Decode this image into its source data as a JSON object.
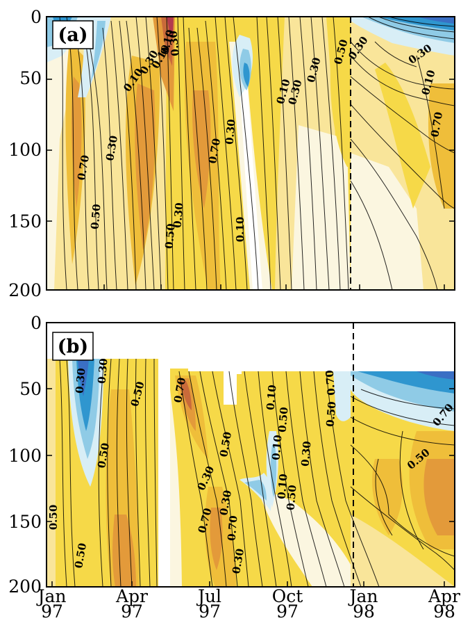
{
  "chart_data": [
    {
      "type": "heatmap",
      "panel_label": "(a)",
      "ylim": [
        200,
        0
      ],
      "yticks": [
        "0",
        "50",
        "100",
        "150",
        "200"
      ],
      "x_range_months": [
        "Jan 97",
        "Apr 98"
      ],
      "contour_labels": [
        "0.70",
        "0.50",
        "0.30",
        "0.10",
        "0.30",
        "0.50",
        "0.30",
        "0.10",
        "0.10",
        "0.30",
        "0.70",
        "0.30",
        "0.10",
        "0.10",
        "0.30",
        "0.30",
        "0.50",
        "0.30",
        "0.30",
        "0.10",
        "0.70"
      ],
      "vline_date": "Dec 97",
      "colormap": [
        "#2f96cf",
        "#8fcbe6",
        "#d8eef6",
        "#fbf7dc",
        "#f9e9a0",
        "#f6d948",
        "#efbe3a",
        "#e39a3a",
        "#c96a3a",
        "#b33a4e"
      ]
    },
    {
      "type": "heatmap",
      "panel_label": "(b)",
      "ylim": [
        200,
        0
      ],
      "yticks": [
        "0",
        "50",
        "100",
        "150",
        "200"
      ],
      "xticks": [
        {
          "month": "Jan",
          "year": "97"
        },
        {
          "month": "Apr",
          "year": "97"
        },
        {
          "month": "Jul",
          "year": "97"
        },
        {
          "month": "Oct",
          "year": "97"
        },
        {
          "month": "Jan",
          "year": "98"
        },
        {
          "month": "Apr",
          "year": "98"
        }
      ],
      "contour_labels": [
        "0.30",
        "0.30",
        "0.50",
        "0.50",
        "0.50",
        "0.50",
        "0.70",
        "0.30",
        "0.70",
        "0.50",
        "0.30",
        "0.10",
        "0.50",
        "0.30",
        "0.70",
        "0.10",
        "0.10",
        "0.50",
        "0.70",
        "0.30",
        "0.50",
        "0.50",
        "0.70"
      ],
      "data_gaps": [
        "May 97",
        "Jun 97 (shallow)"
      ],
      "vline_date": "Dec 97"
    }
  ]
}
